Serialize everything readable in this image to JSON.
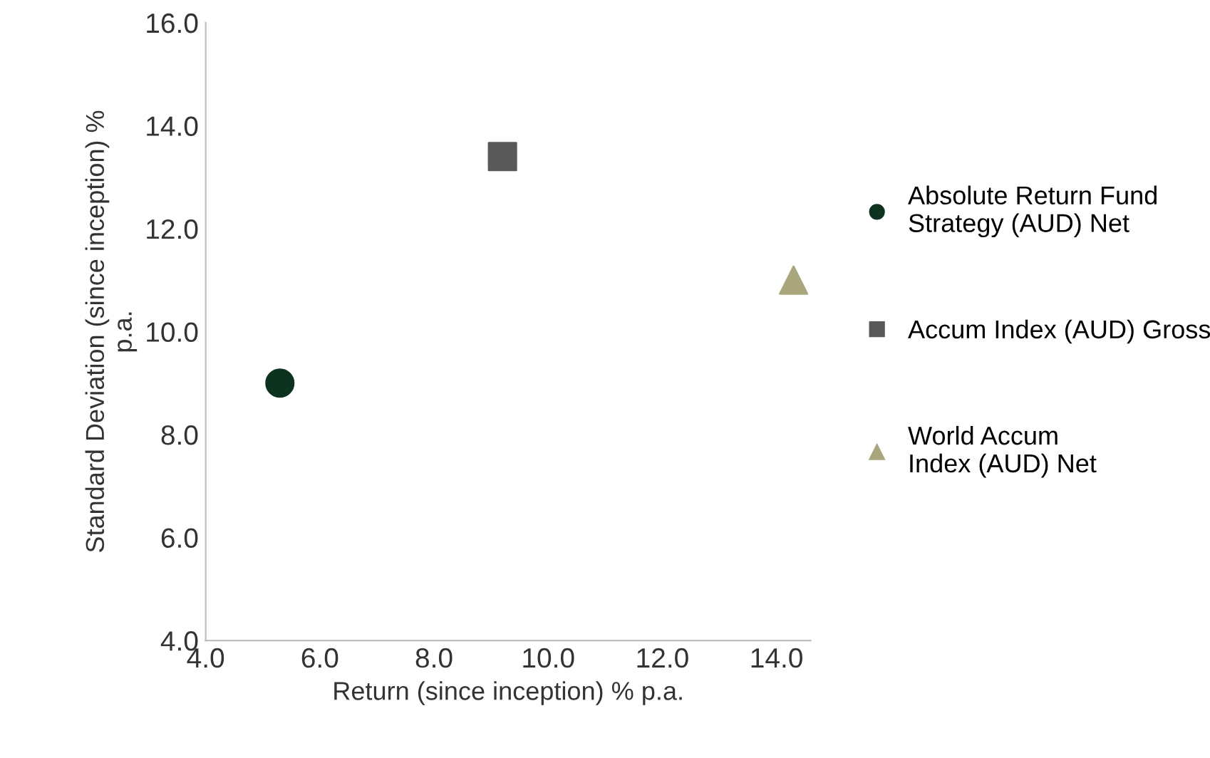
{
  "chart_data": {
    "type": "scatter",
    "xlabel": "Return (since inception) % p.a.",
    "ylabel": "Standard Deviation (since inception) %\np.a.",
    "xlim": [
      4,
      14.6
    ],
    "ylim": [
      4,
      16
    ],
    "xticks": [
      {
        "value": 4,
        "label": "4.0"
      },
      {
        "value": 6,
        "label": "6.0"
      },
      {
        "value": 8,
        "label": "8.0"
      },
      {
        "value": 10,
        "label": "10.0"
      },
      {
        "value": 12,
        "label": "12.0"
      },
      {
        "value": 14,
        "label": "14.0"
      }
    ],
    "yticks": [
      {
        "value": 4,
        "label": "4.0"
      },
      {
        "value": 6,
        "label": "6.0"
      },
      {
        "value": 8,
        "label": "8.0"
      },
      {
        "value": 10,
        "label": "10.0"
      },
      {
        "value": 12,
        "label": "12.0"
      },
      {
        "value": 14,
        "label": "14.0"
      },
      {
        "value": 16,
        "label": "16.0"
      }
    ],
    "grid": false,
    "legend": "right",
    "series": [
      {
        "name": "Absolute Return Fund\nStrategy (AUD) Net",
        "color": "#0d3320",
        "marker": "circle",
        "x": [
          5.3
        ],
        "values": [
          9.0
        ]
      },
      {
        "name": "Accum Index (AUD) Gross",
        "color": "#595959",
        "marker": "square",
        "x": [
          9.2
        ],
        "values": [
          13.4
        ]
      },
      {
        "name": "World Accum\nIndex (AUD) Net",
        "color": "#a9a67e",
        "marker": "triangle",
        "x": [
          14.3
        ],
        "values": [
          11.0
        ]
      }
    ]
  }
}
